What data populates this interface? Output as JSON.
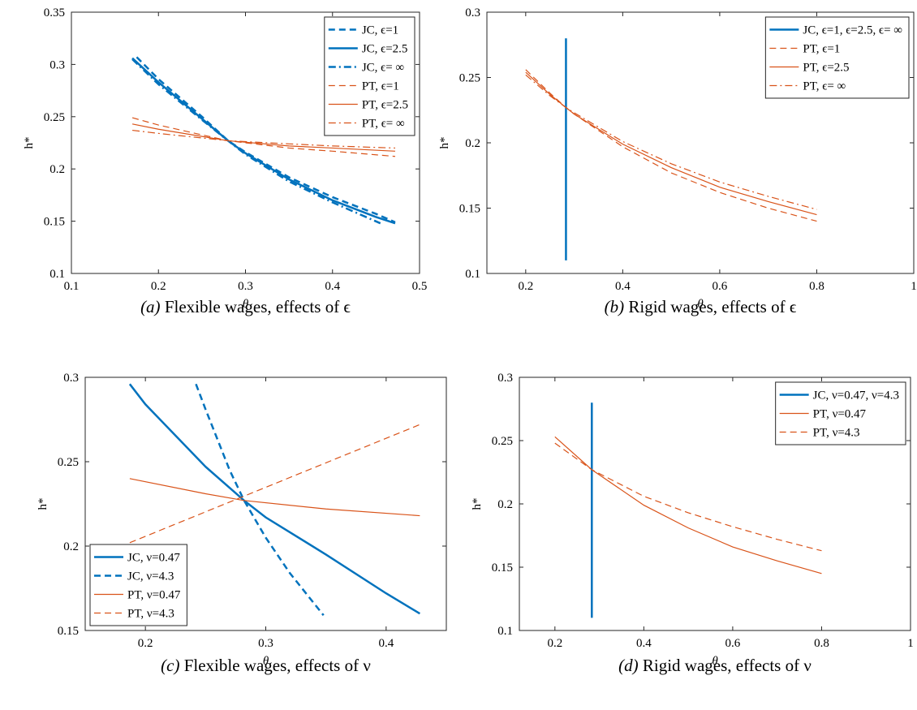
{
  "chart_data": [
    {
      "type": "line",
      "caption_label": "(a)",
      "caption": "Flexible wages, effects of ϵ",
      "xlabel": "θ",
      "ylabel": "h*",
      "xlim": [
        0.1,
        0.5
      ],
      "xticks": [
        0.1,
        0.2,
        0.3,
        0.4,
        0.5
      ],
      "ylim": [
        0.1,
        0.35
      ],
      "yticks": [
        0.1,
        0.15,
        0.2,
        0.25,
        0.3,
        0.35
      ],
      "legend": "top-right",
      "series": [
        {
          "name": "JC, ϵ=1",
          "color": "#0072bd",
          "linestyle": "dash",
          "linewidth": 2.5,
          "x": [
            0.175,
            0.2,
            0.25,
            0.28,
            0.3,
            0.35,
            0.4,
            0.45,
            0.472
          ],
          "values": [
            0.307,
            0.286,
            0.25,
            0.227,
            0.216,
            0.192,
            0.173,
            0.157,
            0.149
          ]
        },
        {
          "name": "JC, ϵ=2.5",
          "color": "#0072bd",
          "linestyle": "solid",
          "linewidth": 2.5,
          "x": [
            0.17,
            0.2,
            0.25,
            0.28,
            0.3,
            0.35,
            0.4,
            0.45,
            0.472
          ],
          "values": [
            0.306,
            0.283,
            0.248,
            0.227,
            0.215,
            0.19,
            0.17,
            0.154,
            0.148
          ]
        },
        {
          "name": "JC, ϵ= ∞",
          "color": "#0072bd",
          "linestyle": "dashdot",
          "linewidth": 2.5,
          "x": [
            0.17,
            0.2,
            0.25,
            0.28,
            0.3,
            0.35,
            0.4,
            0.455
          ],
          "values": [
            0.305,
            0.281,
            0.247,
            0.227,
            0.214,
            0.188,
            0.168,
            0.148
          ]
        },
        {
          "name": "PT, ϵ=1",
          "color": "#d95319",
          "linestyle": "dash",
          "linewidth": 1.2,
          "x": [
            0.17,
            0.2,
            0.28,
            0.35,
            0.4,
            0.472
          ],
          "values": [
            0.249,
            0.242,
            0.227,
            0.22,
            0.217,
            0.212
          ]
        },
        {
          "name": "PT, ϵ=2.5",
          "color": "#d95319",
          "linestyle": "solid",
          "linewidth": 1.2,
          "x": [
            0.17,
            0.2,
            0.28,
            0.35,
            0.4,
            0.472
          ],
          "values": [
            0.243,
            0.238,
            0.227,
            0.222,
            0.22,
            0.217
          ]
        },
        {
          "name": "PT, ϵ= ∞",
          "color": "#d95319",
          "linestyle": "dashdot",
          "linewidth": 1.2,
          "x": [
            0.17,
            0.2,
            0.28,
            0.35,
            0.4,
            0.472
          ],
          "values": [
            0.237,
            0.234,
            0.227,
            0.224,
            0.222,
            0.22
          ]
        }
      ]
    },
    {
      "type": "line",
      "caption_label": "(b)",
      "caption": "Rigid wages, effects of ϵ",
      "xlabel": "θ",
      "ylabel": "h*",
      "xlim": [
        0.12,
        1
      ],
      "xticks": [
        0.2,
        0.4,
        0.6,
        0.8,
        1
      ],
      "ylim": [
        0.1,
        0.3
      ],
      "yticks": [
        0.1,
        0.15,
        0.2,
        0.25,
        0.3
      ],
      "legend": "top-right",
      "series": [
        {
          "name": "JC, ϵ=1,  ϵ=2.5,   ϵ= ∞",
          "color": "#0072bd",
          "linestyle": "solid",
          "linewidth": 2.5,
          "x": [
            0.283,
            0.283
          ],
          "values": [
            0.11,
            0.28
          ]
        },
        {
          "name": "PT,  ϵ=1",
          "color": "#d95319",
          "linestyle": "dash",
          "linewidth": 1.2,
          "x": [
            0.2,
            0.25,
            0.283,
            0.3,
            0.4,
            0.5,
            0.6,
            0.7,
            0.8
          ],
          "values": [
            0.256,
            0.238,
            0.227,
            0.222,
            0.197,
            0.177,
            0.162,
            0.15,
            0.14
          ]
        },
        {
          "name": "PT,  ϵ=2.5",
          "color": "#d95319",
          "linestyle": "solid",
          "linewidth": 1.2,
          "x": [
            0.2,
            0.25,
            0.283,
            0.3,
            0.4,
            0.5,
            0.6,
            0.7,
            0.8
          ],
          "values": [
            0.254,
            0.237,
            0.227,
            0.222,
            0.199,
            0.181,
            0.166,
            0.155,
            0.145
          ]
        },
        {
          "name": "PT,  ϵ= ∞",
          "color": "#d95319",
          "linestyle": "dashdot",
          "linewidth": 1.2,
          "x": [
            0.2,
            0.25,
            0.283,
            0.3,
            0.4,
            0.5,
            0.6,
            0.7,
            0.8
          ],
          "values": [
            0.252,
            0.236,
            0.227,
            0.223,
            0.201,
            0.184,
            0.17,
            0.159,
            0.149
          ]
        }
      ]
    },
    {
      "type": "line",
      "caption_label": "(c)",
      "caption": "Flexible wages, effects of ν",
      "xlabel": "θ",
      "ylabel": "h*",
      "xlim": [
        0.15,
        0.45
      ],
      "xticks": [
        0.2,
        0.3,
        0.4
      ],
      "ylim": [
        0.15,
        0.3
      ],
      "yticks": [
        0.15,
        0.2,
        0.25,
        0.3
      ],
      "legend": "bottom-left",
      "series": [
        {
          "name": "JC, ν=0.47",
          "color": "#0072bd",
          "linestyle": "solid",
          "linewidth": 2.5,
          "x": [
            0.187,
            0.2,
            0.25,
            0.282,
            0.3,
            0.35,
            0.4,
            0.428
          ],
          "values": [
            0.296,
            0.284,
            0.247,
            0.227,
            0.217,
            0.195,
            0.172,
            0.16
          ]
        },
        {
          "name": "JC, ν=4.3",
          "color": "#0072bd",
          "linestyle": "dash",
          "linewidth": 2.5,
          "x": [
            0.242,
            0.25,
            0.27,
            0.282,
            0.3,
            0.32,
            0.348
          ],
          "values": [
            0.296,
            0.281,
            0.245,
            0.227,
            0.205,
            0.184,
            0.159
          ]
        },
        {
          "name": "PT, ν=0.47",
          "color": "#d95319",
          "linestyle": "solid",
          "linewidth": 1.2,
          "x": [
            0.187,
            0.25,
            0.282,
            0.35,
            0.428
          ],
          "values": [
            0.24,
            0.231,
            0.227,
            0.222,
            0.218
          ]
        },
        {
          "name": "PT, ν=4.3",
          "color": "#d95319",
          "linestyle": "dash",
          "linewidth": 1.2,
          "x": [
            0.187,
            0.428
          ],
          "values": [
            0.202,
            0.272
          ]
        }
      ]
    },
    {
      "type": "line",
      "caption_label": "(d)",
      "caption": "Rigid wages, effects of ν",
      "xlabel": "θ",
      "ylabel": "h*",
      "xlim": [
        0.12,
        1
      ],
      "xticks": [
        0.2,
        0.4,
        0.6,
        0.8,
        1
      ],
      "ylim": [
        0.1,
        0.3
      ],
      "yticks": [
        0.1,
        0.15,
        0.2,
        0.25,
        0.3
      ],
      "legend": "top-right",
      "series": [
        {
          "name": "JC, ν=0.47,    ν=4.3",
          "color": "#0072bd",
          "linestyle": "solid",
          "linewidth": 2.5,
          "x": [
            0.283,
            0.283
          ],
          "values": [
            0.11,
            0.28
          ]
        },
        {
          "name": "PT,  ν=0.47",
          "color": "#d95319",
          "linestyle": "solid",
          "linewidth": 1.2,
          "x": [
            0.2,
            0.283,
            0.4,
            0.5,
            0.6,
            0.7,
            0.8
          ],
          "values": [
            0.253,
            0.227,
            0.199,
            0.181,
            0.166,
            0.155,
            0.145
          ]
        },
        {
          "name": "PT,  ν=4.3",
          "color": "#d95319",
          "linestyle": "dash",
          "linewidth": 1.2,
          "x": [
            0.2,
            0.283,
            0.4,
            0.5,
            0.6,
            0.7,
            0.8
          ],
          "values": [
            0.248,
            0.227,
            0.206,
            0.193,
            0.182,
            0.172,
            0.163
          ]
        }
      ]
    }
  ]
}
